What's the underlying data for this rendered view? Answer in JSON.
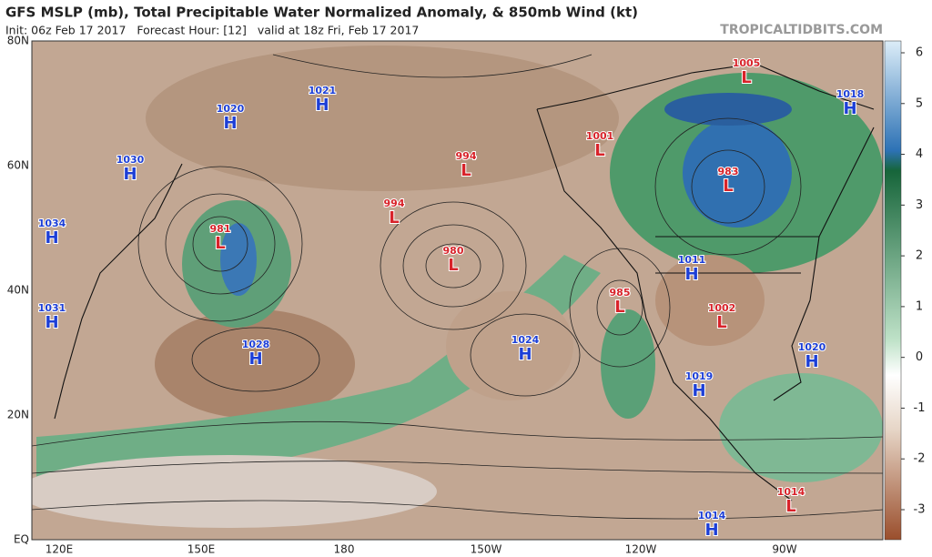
{
  "header": {
    "title": "GFS MSLP (mb), Total Precipitable Water Normalized Anomaly, & 850mb Wind (kt)",
    "subtitle": "Init: 06z Feb 17 2017   Forecast Hour: [12]   valid at 18z Fri, Feb 17 2017",
    "watermark": "TROPICALTIDBITS.COM"
  },
  "map": {
    "lat_labels": [
      "80N",
      "60N",
      "40N",
      "20N",
      "EQ"
    ],
    "lon_labels": [
      "120E",
      "150E",
      "180",
      "150W",
      "120W",
      "90W"
    ],
    "centers": [
      {
        "type": "H",
        "value": "1020"
      },
      {
        "type": "H",
        "value": "1021"
      },
      {
        "type": "H",
        "value": "1030"
      },
      {
        "type": "H",
        "value": "1034"
      },
      {
        "type": "H",
        "value": "1031"
      },
      {
        "type": "H",
        "value": "1028"
      },
      {
        "type": "L",
        "value": "981"
      },
      {
        "type": "L",
        "value": "994"
      },
      {
        "type": "L",
        "value": "994"
      },
      {
        "type": "L",
        "value": "980"
      },
      {
        "type": "H",
        "value": "1024"
      },
      {
        "type": "L",
        "value": "985"
      },
      {
        "type": "L",
        "value": "1001"
      },
      {
        "type": "L",
        "value": "1005"
      },
      {
        "type": "L",
        "value": "983"
      },
      {
        "type": "H",
        "value": "1018"
      },
      {
        "type": "H",
        "value": "1011"
      },
      {
        "type": "L",
        "value": "1002"
      },
      {
        "type": "H",
        "value": "1020"
      },
      {
        "type": "H",
        "value": "1019"
      },
      {
        "type": "H",
        "value": "1014"
      },
      {
        "type": "L",
        "value": "1014"
      }
    ]
  },
  "colorbar": {
    "ticks": [
      6,
      5,
      4,
      3,
      2,
      1,
      0,
      -1,
      -2,
      -3
    ]
  }
}
